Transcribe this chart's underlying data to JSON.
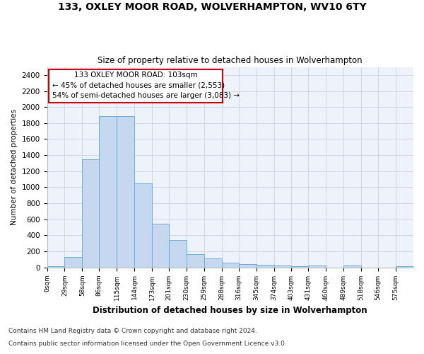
{
  "title1": "133, OXLEY MOOR ROAD, WOLVERHAMPTON, WV10 6TY",
  "title2": "Size of property relative to detached houses in Wolverhampton",
  "xlabel": "Distribution of detached houses by size in Wolverhampton",
  "ylabel": "Number of detached properties",
  "footer1": "Contains HM Land Registry data © Crown copyright and database right 2024.",
  "footer2": "Contains public sector information licensed under the Open Government Licence v3.0.",
  "annotation_line1": "133 OXLEY MOOR ROAD: 103sqm",
  "annotation_line2": "← 45% of detached houses are smaller (2,553)",
  "annotation_line3": "54% of semi-detached houses are larger (3,083) →",
  "property_size": 103,
  "bar_values": [
    10,
    125,
    1345,
    1890,
    1890,
    1045,
    540,
    340,
    160,
    110,
    60,
    40,
    30,
    25,
    15,
    20,
    0,
    20,
    0,
    0,
    15
  ],
  "bin_edges": [
    0,
    29,
    58,
    86,
    115,
    144,
    173,
    201,
    230,
    259,
    288,
    316,
    345,
    374,
    403,
    431,
    460,
    489,
    518,
    546,
    575,
    604
  ],
  "tick_labels": [
    "0sqm",
    "29sqm",
    "58sqm",
    "86sqm",
    "115sqm",
    "144sqm",
    "173sqm",
    "201sqm",
    "230sqm",
    "259sqm",
    "288sqm",
    "316sqm",
    "345sqm",
    "374sqm",
    "403sqm",
    "431sqm",
    "460sqm",
    "489sqm",
    "518sqm",
    "546sqm",
    "575sqm"
  ],
  "bar_color": "#c5d8f0",
  "bar_edge_color": "#6baed6",
  "grid_color": "#d0d8e8",
  "background_color": "#eef2fa",
  "annotation_box_color": "#cc0000",
  "ylim": [
    0,
    2500
  ],
  "yticks": [
    0,
    200,
    400,
    600,
    800,
    1000,
    1200,
    1400,
    1600,
    1800,
    2000,
    2200,
    2400
  ]
}
